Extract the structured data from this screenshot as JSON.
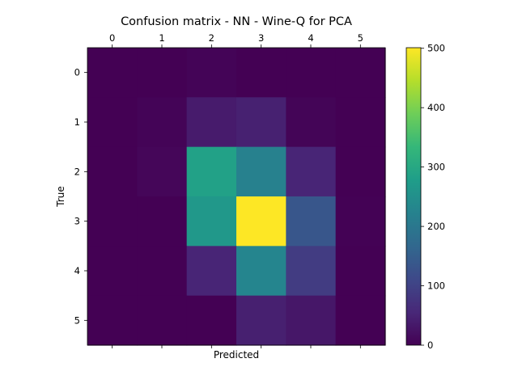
{
  "chart_data": {
    "type": "heatmap",
    "title": "Confusion matrix - NN - Wine-Q for PCA",
    "xlabel": "Predicted",
    "ylabel": "True",
    "x_tick_labels": [
      "0",
      "1",
      "2",
      "3",
      "4",
      "5"
    ],
    "y_tick_labels": [
      "0",
      "1",
      "2",
      "3",
      "4",
      "5"
    ],
    "x_ticks_position": "top",
    "values": [
      [
        0,
        0,
        4,
        0,
        0,
        0
      ],
      [
        0,
        4,
        37,
        45,
        5,
        0
      ],
      [
        0,
        7,
        286,
        220,
        52,
        0
      ],
      [
        0,
        0,
        266,
        501,
        135,
        2
      ],
      [
        0,
        0,
        52,
        228,
        89,
        0
      ],
      [
        0,
        0,
        0,
        44,
        31,
        0
      ]
    ],
    "colormap": "viridis",
    "colorbar": {
      "min": 0,
      "max": 501,
      "ticks": [
        0,
        100,
        200,
        300,
        400,
        500
      ],
      "tick_labels": [
        "0",
        "100",
        "200",
        "300",
        "400",
        "500"
      ]
    },
    "grid": false
  },
  "colors": {
    "viridis": [
      "#440154",
      "#482878",
      "#3e4989",
      "#31688e",
      "#26828e",
      "#1f9e89",
      "#35b779",
      "#6ece58",
      "#b5de2b",
      "#fde725"
    ]
  }
}
